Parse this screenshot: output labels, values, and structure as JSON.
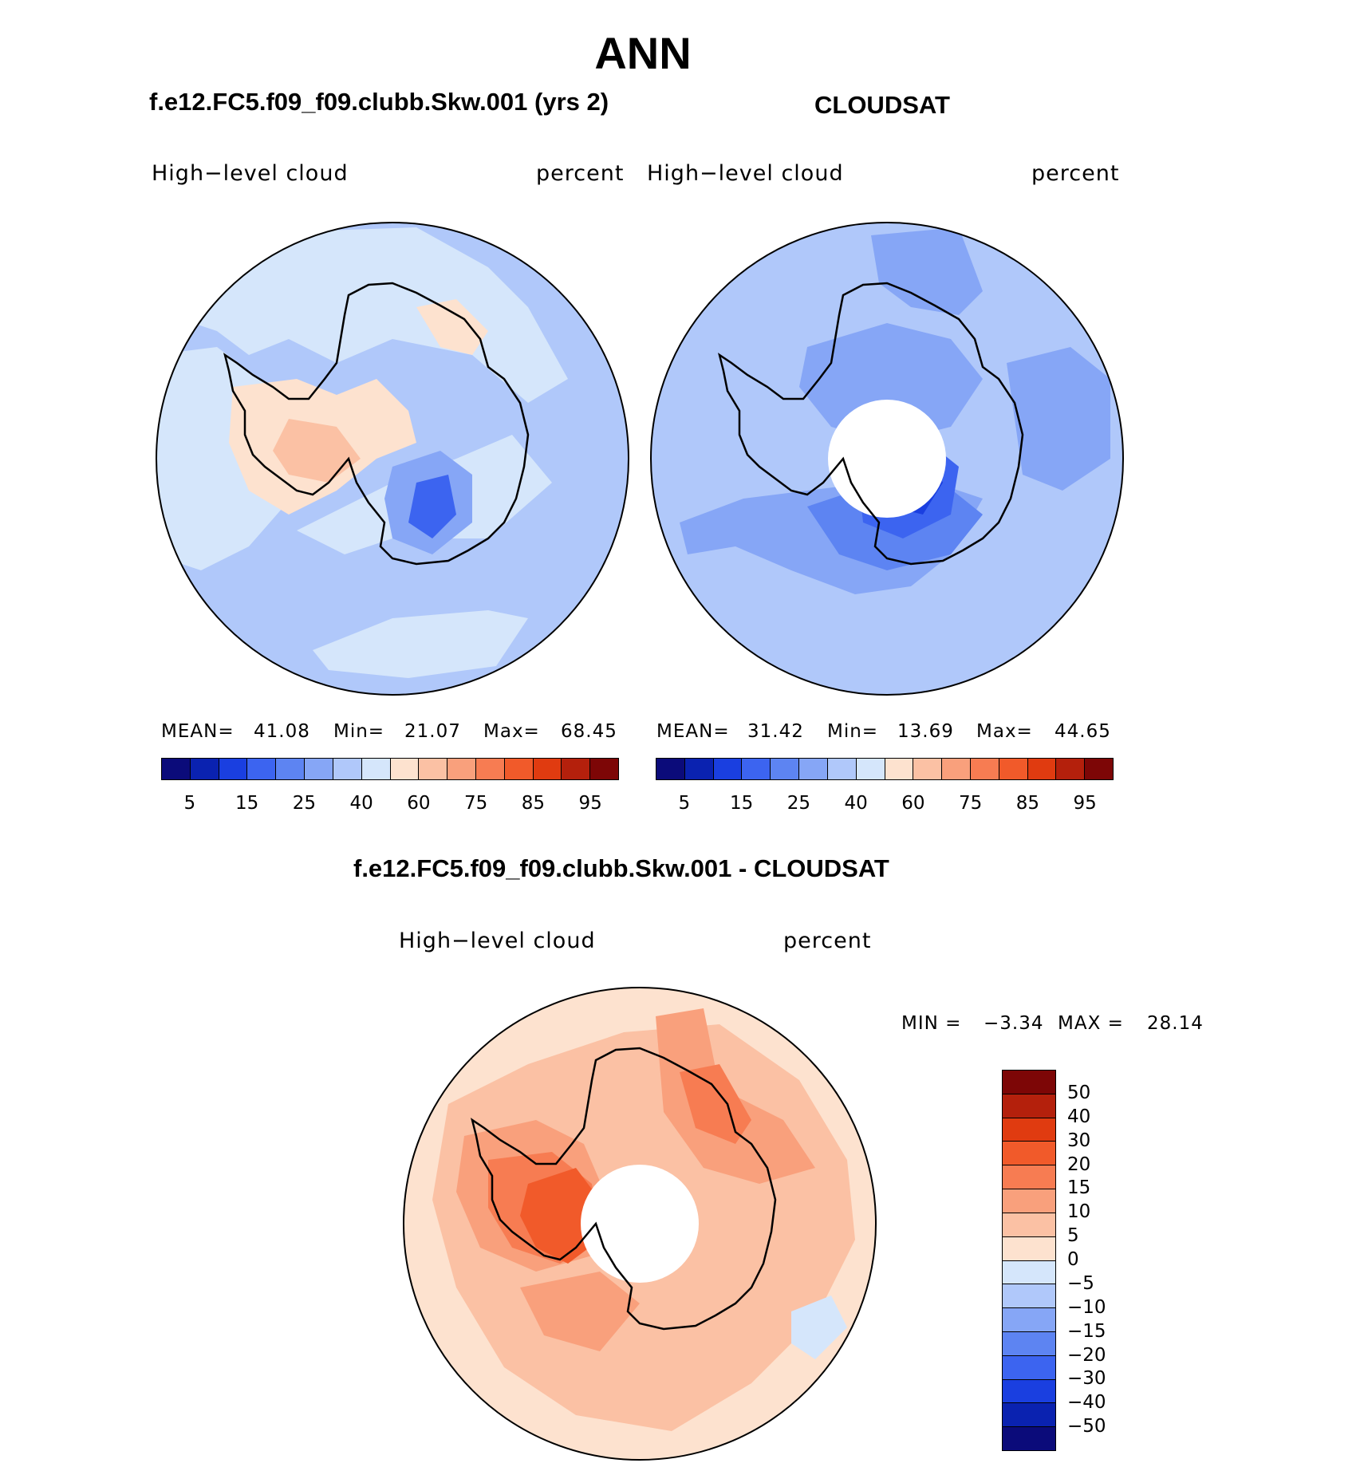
{
  "page": {
    "title": "ANN"
  },
  "panels": {
    "model": {
      "title": "f.e12.FC5.f09_f09.clubb.Skw.001 (yrs 2)",
      "variable": "High−level cloud",
      "units": "percent",
      "mean_label": "MEAN=",
      "mean": "41.08",
      "min_label": "Min=",
      "min": "21.07",
      "max_label": "Max=",
      "max": "68.45"
    },
    "obs": {
      "title": "CLOUDSAT",
      "variable": "High−level cloud",
      "units": "percent",
      "mean_label": "MEAN=",
      "mean": "31.42",
      "min_label": "Min=",
      "min": "13.69",
      "max_label": "Max=",
      "max": "44.65"
    },
    "diff": {
      "title": "f.e12.FC5.f09_f09.clubb.Skw.001 - CLOUDSAT",
      "variable": "High−level cloud",
      "units": "percent",
      "min_label": "MIN =",
      "min": "−3.34",
      "max_label": "MAX =",
      "max": "28.14"
    }
  },
  "colorbars": {
    "absolute": {
      "colors": [
        "#0b0b7a",
        "#0a22b0",
        "#1a3fe0",
        "#3c64f0",
        "#5d84f2",
        "#86a6f6",
        "#b0c8fa",
        "#d5e6fb",
        "#fde2cf",
        "#fbc1a4",
        "#f9a07c",
        "#f77c52",
        "#f15a2a",
        "#e03b10",
        "#b4200c",
        "#7d0606"
      ],
      "tick_labels": [
        "5",
        "15",
        "25",
        "40",
        "60",
        "75",
        "85",
        "95"
      ]
    },
    "difference": {
      "colors": [
        "#7d0606",
        "#b4200c",
        "#e03b10",
        "#f15a2a",
        "#f77c52",
        "#f9a07c",
        "#fbc1a4",
        "#fde2cf",
        "#d5e6fb",
        "#b0c8fa",
        "#86a6f6",
        "#5d84f2",
        "#3c64f0",
        "#1a3fe0",
        "#0a22b0",
        "#0b0b7a"
      ],
      "tick_labels": [
        "50",
        "40",
        "30",
        "20",
        "15",
        "10",
        "5",
        "0",
        "−5",
        "−10",
        "−15",
        "−20",
        "−30",
        "−40",
        "−50"
      ]
    }
  },
  "colors": {
    "model_background": "#b0c8fa",
    "model_pale": "#d5e6fb",
    "model_warm": "#fde2cf",
    "model_warm2": "#fbc1a4",
    "model_blue": "#86a6f6",
    "model_dark": "#3c64f0",
    "obs_background": "#b0c8fa",
    "obs_mid": "#86a6f6",
    "obs_dark": "#5d84f2",
    "obs_darker": "#3c64f0",
    "obs_darkest": "#1a3fe0",
    "diff_background": "#fde2cf",
    "diff_l1": "#fbc1a4",
    "diff_l2": "#f9a07c",
    "diff_l3": "#f77c52",
    "diff_l4": "#f15a2a",
    "diff_cool": "#d5e6fb"
  }
}
